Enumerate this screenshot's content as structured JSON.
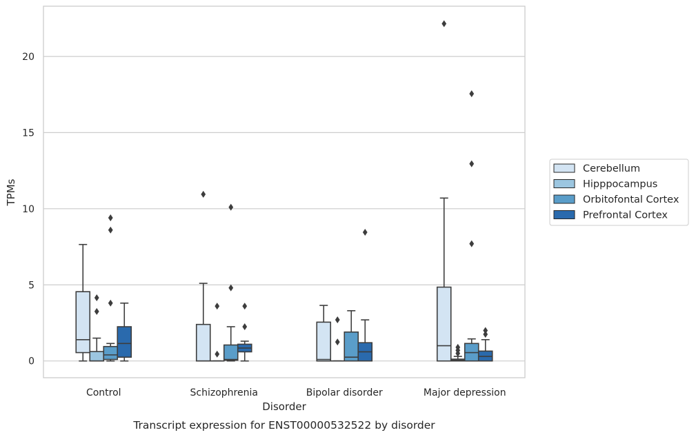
{
  "chart_data": {
    "type": "box",
    "title": "",
    "caption": "Transcript expression for ENST00000532522 by disorder",
    "xlabel": "Disorder",
    "ylabel": "TPMs",
    "ylim": [
      -1.1,
      23.3
    ],
    "yticks": [
      0,
      5,
      10,
      15,
      20
    ],
    "grid": "horizontal",
    "legend_position": "right",
    "categories": [
      "Control",
      "Schizophrenia",
      "Bipolar disorder",
      "Major depression"
    ],
    "series": [
      {
        "name": "Cerebellum",
        "color": "#d3e4f3",
        "boxes": [
          {
            "whisker_low": 0,
            "q1": 0.55,
            "median": 1.4,
            "q3": 4.55,
            "whisker_high": 7.65,
            "outliers": []
          },
          {
            "whisker_low": 0,
            "q1": 0,
            "median": 0,
            "q3": 2.4,
            "whisker_high": 5.1,
            "outliers": [
              10.95
            ]
          },
          {
            "whisker_low": 0,
            "q1": 0,
            "median": 0.1,
            "q3": 2.55,
            "whisker_high": 3.65,
            "outliers": []
          },
          {
            "whisker_low": 0,
            "q1": 0,
            "median": 1.0,
            "q3": 4.85,
            "whisker_high": 10.7,
            "outliers": [
              22.15
            ]
          }
        ]
      },
      {
        "name": "Hipppocampus",
        "color": "#9cc6e0",
        "boxes": [
          {
            "whisker_low": 0,
            "q1": 0,
            "median": 0,
            "q3": 0.62,
            "whisker_high": 1.5,
            "outliers": [
              3.25,
              4.15
            ]
          },
          {
            "whisker_low": 0,
            "q1": 0,
            "median": 0,
            "q3": 0,
            "whisker_high": 0,
            "outliers": [
              0.45,
              3.6
            ]
          },
          {
            "whisker_low": 0,
            "q1": 0,
            "median": 0,
            "q3": 0,
            "whisker_high": 0,
            "outliers": [
              1.25,
              2.7
            ]
          },
          {
            "whisker_low": 0,
            "q1": 0,
            "median": 0.05,
            "q3": 0.12,
            "whisker_high": 0.3,
            "outliers": [
              0.5,
              0.7,
              0.9
            ]
          }
        ]
      },
      {
        "name": "Orbitofontal Cortex",
        "color": "#5a9dc9",
        "boxes": [
          {
            "whisker_low": 0,
            "q1": 0.1,
            "median": 0.4,
            "q3": 0.95,
            "whisker_high": 1.15,
            "outliers": [
              3.8,
              8.6,
              9.4
            ]
          },
          {
            "whisker_low": 0,
            "q1": 0.05,
            "median": 0.1,
            "q3": 1.05,
            "whisker_high": 2.25,
            "outliers": [
              4.8,
              10.1
            ]
          },
          {
            "whisker_low": 0,
            "q1": 0,
            "median": 0.25,
            "q3": 1.9,
            "whisker_high": 3.3,
            "outliers": []
          },
          {
            "whisker_low": 0,
            "q1": 0,
            "median": 0.55,
            "q3": 1.15,
            "whisker_high": 1.45,
            "outliers": [
              7.7,
              12.95,
              17.55
            ]
          }
        ]
      },
      {
        "name": "Prefrontal Cortex",
        "color": "#2a6aad",
        "boxes": [
          {
            "whisker_low": 0,
            "q1": 0.25,
            "median": 1.15,
            "q3": 2.25,
            "whisker_high": 3.8,
            "outliers": []
          },
          {
            "whisker_low": 0,
            "q1": 0.6,
            "median": 0.85,
            "q3": 1.1,
            "whisker_high": 1.3,
            "outliers": [
              2.25,
              3.6
            ]
          },
          {
            "whisker_low": 0,
            "q1": 0,
            "median": 0.6,
            "q3": 1.2,
            "whisker_high": 2.7,
            "outliers": [
              8.45
            ]
          },
          {
            "whisker_low": 0,
            "q1": 0,
            "median": 0.3,
            "q3": 0.65,
            "whisker_high": 1.4,
            "outliers": [
              1.75,
              2.0
            ]
          }
        ]
      }
    ]
  }
}
